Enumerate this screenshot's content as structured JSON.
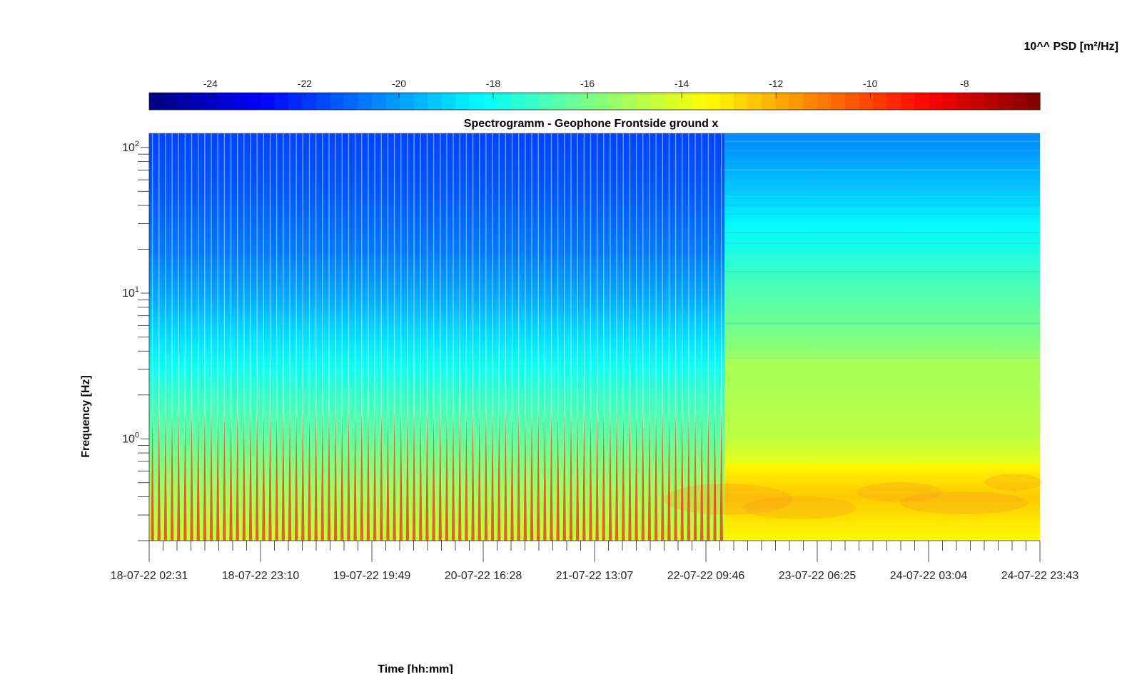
{
  "chart_data": {
    "type": "heatmap",
    "title": "Spectrogramm - Geophone Frontside ground x",
    "xlabel": "Time [hh:mm]",
    "ylabel": "Frequency [Hz]",
    "colorbar_label": "10^^ PSD [m²/Hz]",
    "colormap": "jet",
    "color_range": [
      -25.3,
      -6.4
    ],
    "colorbar_ticks": [
      "-24",
      "-22",
      "-20",
      "-18",
      "-16",
      "-14",
      "-12",
      "-10",
      "-8"
    ],
    "colorbar_tick_values": [
      -24,
      -22,
      -20,
      -18,
      -16,
      -14,
      -12,
      -10,
      -8
    ],
    "y_scale": "log",
    "ylim": [
      0.2,
      125
    ],
    "y_major_ticks": [
      {
        "value": 1,
        "base": "10",
        "exp": "0"
      },
      {
        "value": 10,
        "base": "10",
        "exp": "1"
      },
      {
        "value": 100,
        "base": "10",
        "exp": "2"
      }
    ],
    "x_tick_labels": [
      "18-07-22 02:31",
      "18-07-22 23:10",
      "19-07-22 19:49",
      "20-07-22 16:28",
      "21-07-22 13:07",
      "22-07-22 09:46",
      "23-07-22 06:25",
      "24-07-22 03:04",
      "24-07-22 23:43"
    ],
    "xlim": [
      "18-07-22 02:31",
      "24-07-22 23:43"
    ],
    "regime_change_time": "22-07-22 13:15",
    "pulses_before_change": 88,
    "band_profiles": [
      {
        "segment": "18-07-22 02:31 to 22-07-22 13:15",
        "freq_hz": [
          0.2,
          0.5,
          1,
          2,
          3,
          5,
          10,
          20,
          50,
          100,
          125
        ],
        "log10_psd": [
          -14.5,
          -15.4,
          -16.4,
          -17.2,
          -17.9,
          -18.8,
          -19.9,
          -20.7,
          -21.3,
          -21.6,
          -21.7
        ]
      },
      {
        "segment": "22-07-22 13:15 to 24-07-22 23:43",
        "freq_hz": [
          0.2,
          0.4,
          0.65,
          0.7,
          1,
          2,
          3.5,
          4,
          6,
          10,
          18,
          30,
          50,
          100,
          125
        ],
        "log10_psd": [
          -13.4,
          -12.5,
          -13.3,
          -14.0,
          -14.7,
          -15.0,
          -15.1,
          -15.6,
          -16.2,
          -16.7,
          -17.6,
          -18.3,
          -19.2,
          -20.2,
          -20.4
        ]
      }
    ]
  }
}
